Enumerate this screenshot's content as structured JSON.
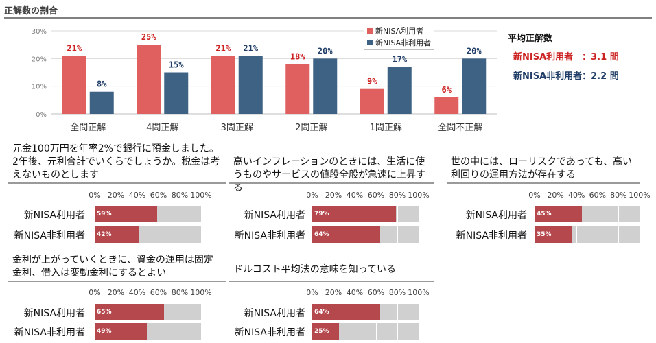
{
  "section_title": "正解数の割合",
  "legend": [
    {
      "label": "新NISA利用者",
      "color": "#e06060"
    },
    {
      "label": "新NISA非利用者",
      "color": "#3e6284"
    }
  ],
  "average": {
    "title": "平均正解数",
    "rows": [
      {
        "label": "新NISA利用者　：3.1 問",
        "color": "#cc2222"
      },
      {
        "label": "新NISA非利用者：2.2 問",
        "color": "#1f3d66"
      }
    ]
  },
  "chart_data": [
    {
      "type": "bar",
      "title": "正解数の割合",
      "categories": [
        "全問正解",
        "4問正解",
        "3問正解",
        "2問正解",
        "1問正解",
        "全問不正解"
      ],
      "series": [
        {
          "name": "新NISA利用者",
          "values": [
            21,
            25,
            21,
            18,
            9,
            6
          ],
          "labels": [
            "21%",
            "25%",
            "21%",
            "18%",
            "9%",
            "6%"
          ],
          "color": "#e06060",
          "label_color": "#cc2222"
        },
        {
          "name": "新NISA非利用者",
          "values": [
            8,
            15,
            21,
            20,
            17,
            20
          ],
          "labels": [
            "8%",
            "15%",
            "21%",
            "20%",
            "17%",
            "20%"
          ],
          "color": "#3e6284",
          "label_color": "#1f3d66"
        }
      ],
      "ylim": [
        0,
        30
      ],
      "yticks": [
        0,
        10,
        20,
        30
      ],
      "ytick_labels": [
        "0%",
        "10%",
        "20%",
        "30%"
      ],
      "grid": true,
      "legend_position": "top"
    },
    {
      "type": "bar",
      "orientation": "horizontal",
      "question": "元金100万円を年率2%で銀行に預金しました。2年後、元利合計でいくらでしょうか。税金は考えないものとします",
      "categories": [
        "新NISA利用者",
        "新NISA非利用者"
      ],
      "values": [
        59,
        42
      ],
      "labels": [
        "59%",
        "42%"
      ],
      "xlim": [
        0,
        100
      ],
      "xtick_labels": [
        "0%",
        "20%",
        "40%",
        "60%",
        "80%",
        "100%"
      ]
    },
    {
      "type": "bar",
      "orientation": "horizontal",
      "question": "高いインフレーションのときには、生活に使うものやサービスの値段全般が急速に上昇する",
      "categories": [
        "新NISA利用者",
        "新NISA非利用者"
      ],
      "values": [
        79,
        64
      ],
      "labels": [
        "79%",
        "64%"
      ],
      "xlim": [
        0,
        100
      ],
      "xtick_labels": [
        "0%",
        "20%",
        "40%",
        "60%",
        "80%",
        "100%"
      ]
    },
    {
      "type": "bar",
      "orientation": "horizontal",
      "question": "世の中には、ローリスクであっても、高い利回りの運用方法が存在する",
      "categories": [
        "新NISA利用者",
        "新NISA非利用者"
      ],
      "values": [
        45,
        35
      ],
      "labels": [
        "45%",
        "35%"
      ],
      "xlim": [
        0,
        100
      ],
      "xtick_labels": [
        "0%",
        "20%",
        "40%",
        "60%",
        "80%",
        "100%"
      ]
    },
    {
      "type": "bar",
      "orientation": "horizontal",
      "question": "金利が上がっていくときに、資金の運用は固定金利、借入は変動金利にするとよい",
      "categories": [
        "新NISA利用者",
        "新NISA非利用者"
      ],
      "values": [
        65,
        49
      ],
      "labels": [
        "65%",
        "49%"
      ],
      "xlim": [
        0,
        100
      ],
      "xtick_labels": [
        "0%",
        "20%",
        "40%",
        "60%",
        "80%",
        "100%"
      ]
    },
    {
      "type": "bar",
      "orientation": "horizontal",
      "question": "ドルコスト平均法の意味を知っている",
      "categories": [
        "新NISA利用者",
        "新NISA非利用者"
      ],
      "values": [
        64,
        25
      ],
      "labels": [
        "64%",
        "25%"
      ],
      "xlim": [
        0,
        100
      ],
      "xtick_labels": [
        "0%",
        "20%",
        "40%",
        "60%",
        "80%",
        "100%"
      ]
    }
  ]
}
